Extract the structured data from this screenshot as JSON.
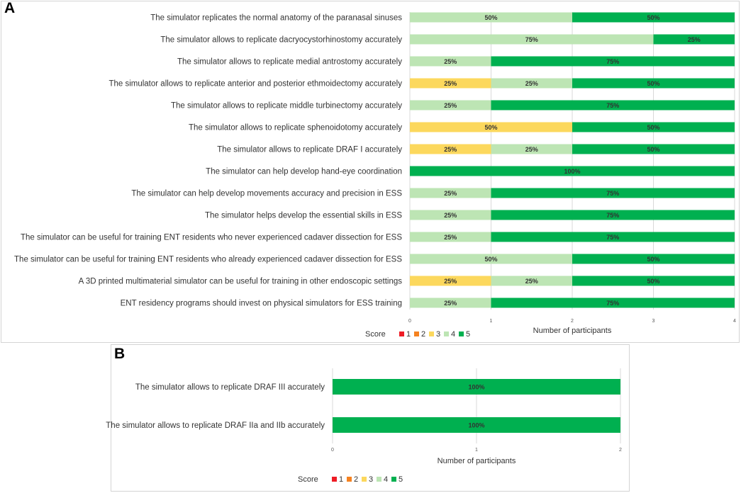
{
  "panels": {
    "a_letter": "A",
    "b_letter": "B"
  },
  "chart_data": [
    {
      "id": "A",
      "type": "bar",
      "orientation": "horizontal",
      "stacked": true,
      "xlabel": "Number of participants",
      "xlim": [
        0,
        4
      ],
      "xticks": [
        "0",
        "1",
        "2",
        "3",
        "4"
      ],
      "legend_title": "Score",
      "legend": [
        "1",
        "2",
        "3",
        "4",
        "5"
      ],
      "legend_position": "bottom",
      "colors": {
        "1": "#ee1c25",
        "2": "#f58220",
        "3": "#fcd85d",
        "4": "#bde5b4",
        "5": "#00b050"
      },
      "categories": [
        "The simulator replicates the normal anatomy of the paranasal sinuses",
        "The simulator allows to replicate dacryocystorhinostomy accurately",
        "The simulator allows to replicate medial antrostomy accurately",
        "The simulator allows to replicate anterior and posterior ethmoidectomy accurately",
        "The simulator allows to replicate middle turbinectomy accurately",
        "The simulator allows to replicate sphenoidotomy accurately",
        "The simulator allows to replicate DRAF I accurately",
        "The simulator can help develop hand-eye coordination",
        "The simulator can help develop movements accuracy and precision in ESS",
        "The simulator helps develop the essential skills in ESS",
        "The simulator can be useful for training ENT residents who never experienced cadaver dissection for ESS",
        "The simulator can be useful for training ENT residents who already experienced cadaver dissection for ESS",
        "A 3D printed multimaterial simulator can be useful for training in other endoscopic settings",
        "ENT residency programs should invest on physical simulators for ESS training"
      ],
      "series": [
        {
          "name": "1",
          "values": [
            0,
            0,
            0,
            0,
            0,
            0,
            0,
            0,
            0,
            0,
            0,
            0,
            0,
            0
          ]
        },
        {
          "name": "2",
          "values": [
            0,
            0,
            0,
            0,
            0,
            0,
            0,
            0,
            0,
            0,
            0,
            0,
            0,
            0
          ]
        },
        {
          "name": "3",
          "values": [
            0,
            0,
            0,
            1,
            0,
            2,
            1,
            0,
            0,
            0,
            0,
            0,
            1,
            0
          ]
        },
        {
          "name": "4",
          "values": [
            2,
            3,
            1,
            1,
            1,
            0,
            1,
            0,
            1,
            1,
            1,
            2,
            1,
            1
          ]
        },
        {
          "name": "5",
          "values": [
            2,
            1,
            3,
            2,
            3,
            2,
            2,
            4,
            3,
            3,
            3,
            2,
            2,
            3
          ]
        }
      ],
      "percent_labels": [
        [
          "50%",
          "50%"
        ],
        [
          "75%",
          "25%"
        ],
        [
          "25%",
          "75%"
        ],
        [
          "25%",
          "25%",
          "50%"
        ],
        [
          "25%",
          "75%"
        ],
        [
          "50%",
          "50%"
        ],
        [
          "25%",
          "25%",
          "50%"
        ],
        [
          "100%"
        ],
        [
          "25%",
          "75%"
        ],
        [
          "25%",
          "75%"
        ],
        [
          "25%",
          "75%"
        ],
        [
          "50%",
          "50%"
        ],
        [
          "25%",
          "25%",
          "50%"
        ],
        [
          "25%",
          "75%"
        ]
      ]
    },
    {
      "id": "B",
      "type": "bar",
      "orientation": "horizontal",
      "stacked": true,
      "xlabel": "Number of participants",
      "xlim": [
        0,
        2
      ],
      "xticks": [
        "0",
        "1",
        "2"
      ],
      "legend_title": "Score",
      "legend": [
        "1",
        "2",
        "3",
        "4",
        "5"
      ],
      "legend_position": "bottom",
      "colors": {
        "1": "#ee1c25",
        "2": "#f58220",
        "3": "#fcd85d",
        "4": "#bde5b4",
        "5": "#00b050"
      },
      "categories": [
        "The simulator allows to replicate DRAF III accurately",
        "The simulator allows to replicate DRAF IIa and IIb accurately"
      ],
      "series": [
        {
          "name": "1",
          "values": [
            0,
            0
          ]
        },
        {
          "name": "2",
          "values": [
            0,
            0
          ]
        },
        {
          "name": "3",
          "values": [
            0,
            0
          ]
        },
        {
          "name": "4",
          "values": [
            0,
            0
          ]
        },
        {
          "name": "5",
          "values": [
            2,
            2
          ]
        }
      ],
      "percent_labels": [
        [
          "100%"
        ],
        [
          "100%"
        ]
      ]
    }
  ]
}
